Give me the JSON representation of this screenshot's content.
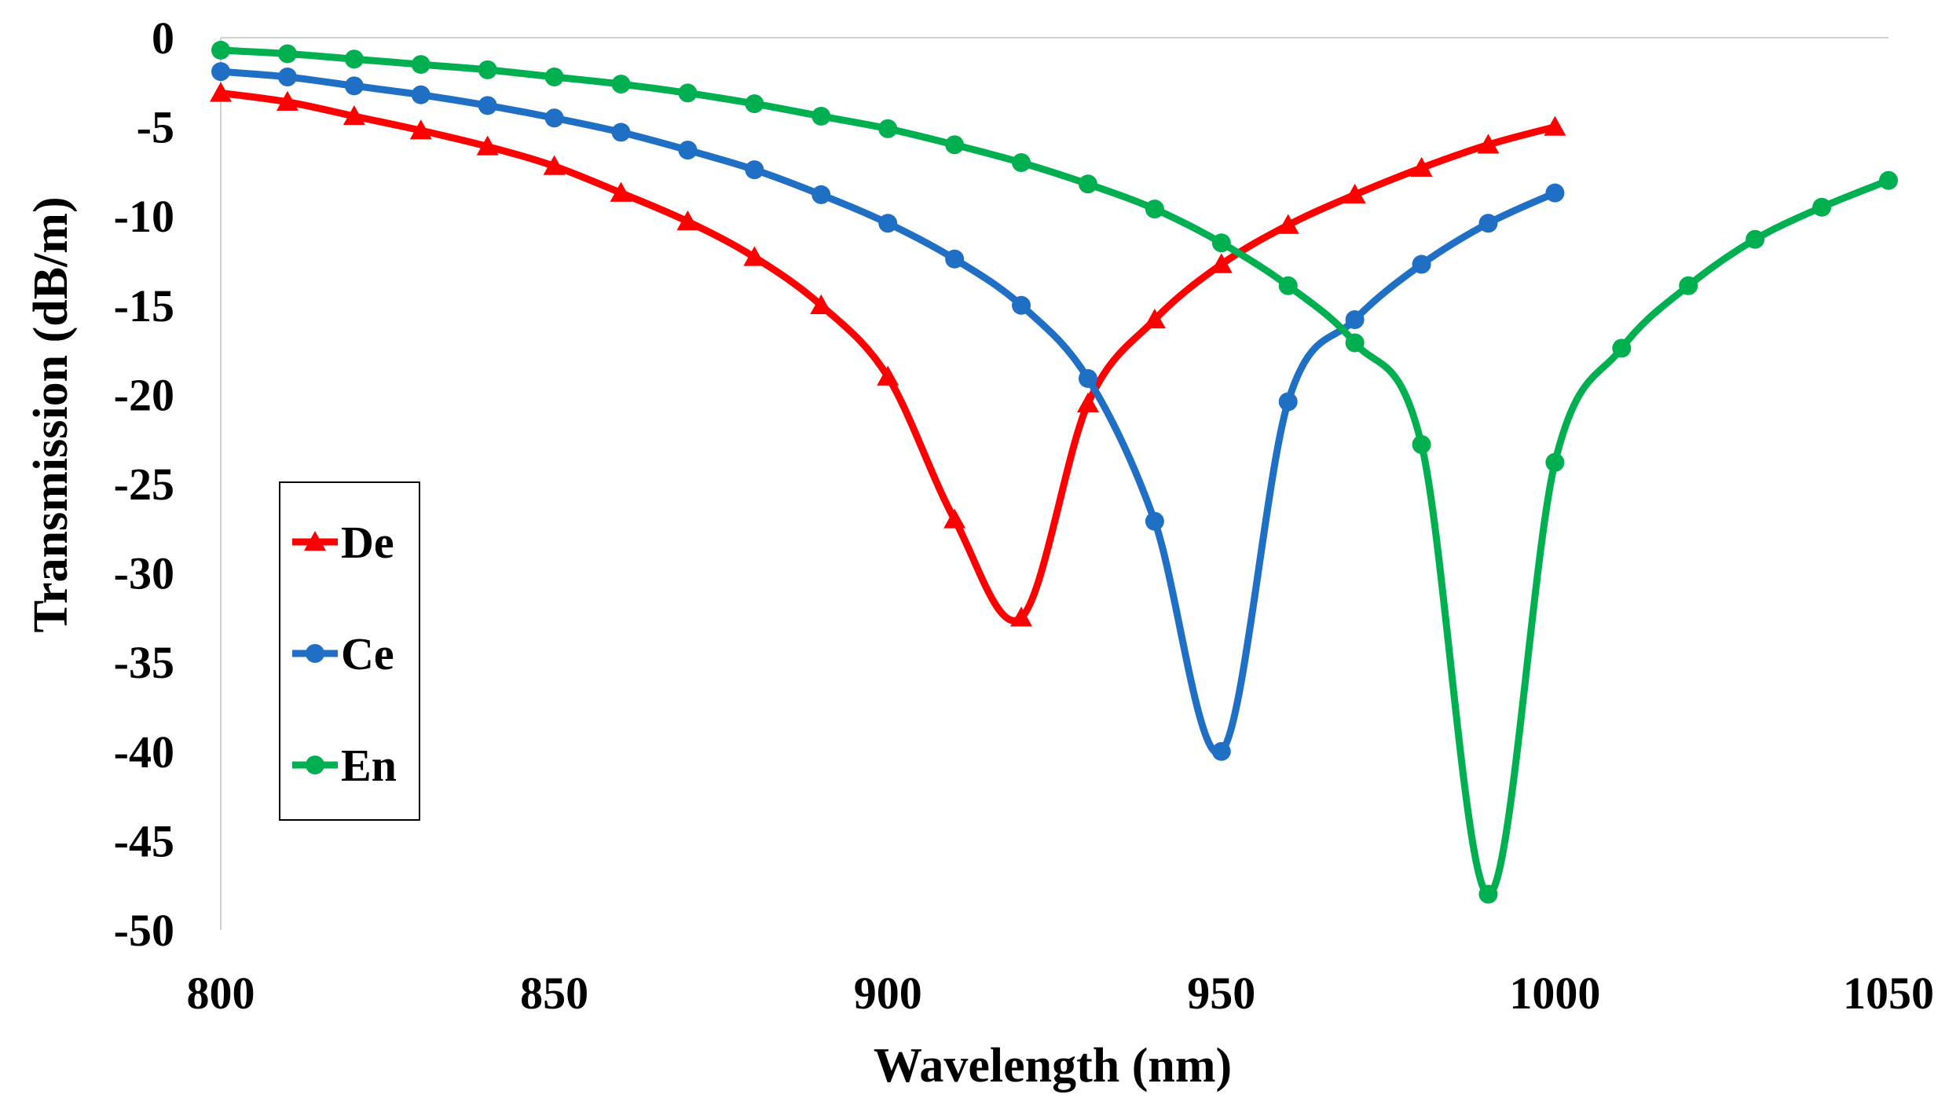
{
  "chart_data": {
    "type": "line",
    "title": "",
    "xlabel": "Wavelength (nm)",
    "ylabel": "Transmission (dB/m)",
    "xlim": [
      800,
      1050
    ],
    "ylim": [
      -50,
      0
    ],
    "xticks": [
      800,
      850,
      900,
      950,
      1000,
      1050
    ],
    "yticks": [
      0,
      -5,
      -10,
      -15,
      -20,
      -25,
      -30,
      -35,
      -40,
      -45,
      -50
    ],
    "grid": "horizontal line at 0 only",
    "legend_position": "left-middle",
    "series": [
      {
        "name": "De",
        "color": "#ff0000",
        "marker": "triangle",
        "x": [
          800,
          810,
          820,
          830,
          840,
          850,
          860,
          870,
          880,
          890,
          900,
          910,
          920,
          930,
          940,
          950,
          960,
          970,
          980,
          990,
          1000
        ],
        "y": [
          -3.1,
          -3.6,
          -4.4,
          -5.2,
          -6.1,
          -7.2,
          -8.7,
          -10.3,
          -12.3,
          -15.0,
          -19.0,
          -27.0,
          -32.5,
          -20.5,
          -15.8,
          -12.7,
          -10.5,
          -8.8,
          -7.3,
          -6.0,
          -5.0
        ]
      },
      {
        "name": "Ce",
        "color": "#1f6fc5",
        "marker": "circle",
        "x": [
          800,
          810,
          820,
          830,
          840,
          850,
          860,
          870,
          880,
          890,
          900,
          910,
          920,
          930,
          940,
          950,
          960,
          970,
          980,
          990,
          1000
        ],
        "y": [
          -1.9,
          -2.2,
          -2.7,
          -3.2,
          -3.8,
          -4.5,
          -5.3,
          -6.3,
          -7.4,
          -8.8,
          -10.4,
          -12.4,
          -15.0,
          -19.1,
          -27.1,
          -40.0,
          -20.4,
          -15.8,
          -12.7,
          -10.4,
          -8.7
        ]
      },
      {
        "name": "En",
        "color": "#00b050",
        "marker": "circle",
        "x": [
          800,
          810,
          820,
          830,
          840,
          850,
          860,
          870,
          880,
          890,
          900,
          910,
          920,
          930,
          940,
          950,
          960,
          970,
          980,
          990,
          1000,
          1010,
          1020,
          1030,
          1040,
          1050
        ],
        "y": [
          -0.7,
          -0.9,
          -1.2,
          -1.5,
          -1.8,
          -2.2,
          -2.6,
          -3.1,
          -3.7,
          -4.4,
          -5.1,
          -6.0,
          -7.0,
          -8.2,
          -9.6,
          -11.5,
          -13.9,
          -17.1,
          -22.8,
          -48.0,
          -23.8,
          -17.4,
          -13.9,
          -11.3,
          -9.5,
          -8.0
        ]
      }
    ]
  }
}
